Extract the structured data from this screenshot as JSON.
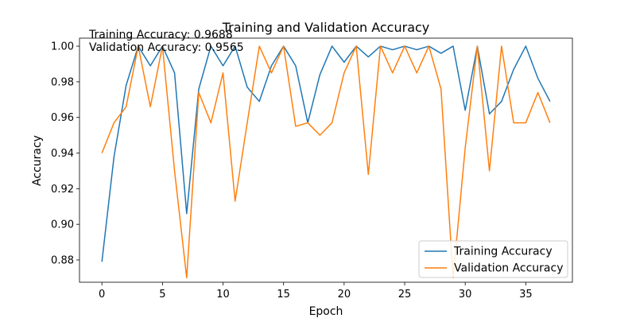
{
  "chart_data": {
    "type": "line",
    "title": "Training and Validation Accuracy",
    "xlabel": "Epoch",
    "ylabel": "Accuracy",
    "xlim": [
      -1.85,
      38.85
    ],
    "ylim": [
      0.8675,
      1.0045
    ],
    "xticks": [
      0,
      5,
      10,
      15,
      20,
      25,
      30,
      35
    ],
    "yticks": [
      0.88,
      0.9,
      0.92,
      0.94,
      0.96,
      0.98,
      1.0
    ],
    "ytick_labels": [
      "0.88",
      "0.90",
      "0.92",
      "0.94",
      "0.96",
      "0.98",
      "1.00"
    ],
    "grid": false,
    "legend_position": "lower-right",
    "annotations": [
      "Training Accuracy: 0.9688",
      "Validation Accuracy: 0.9565"
    ],
    "x": [
      0,
      1,
      2,
      3,
      4,
      5,
      6,
      7,
      8,
      9,
      10,
      11,
      12,
      13,
      14,
      15,
      16,
      17,
      18,
      19,
      20,
      21,
      22,
      23,
      24,
      25,
      26,
      27,
      28,
      29,
      30,
      31,
      32,
      33,
      34,
      35,
      36,
      37
    ],
    "series": [
      {
        "name": "Training Accuracy",
        "color": "#1f77b4",
        "values": [
          0.879,
          0.938,
          0.978,
          1.0,
          0.989,
          1.0,
          0.985,
          0.906,
          0.976,
          1.0,
          0.989,
          1.0,
          0.977,
          0.969,
          0.989,
          1.0,
          0.989,
          0.957,
          0.984,
          1.0,
          0.991,
          1.0,
          0.994,
          1.0,
          0.998,
          1.0,
          0.998,
          1.0,
          0.996,
          1.0,
          0.964,
          1.0,
          0.962,
          0.969,
          0.987,
          1.0,
          0.982,
          0.969
        ]
      },
      {
        "name": "Validation Accuracy",
        "color": "#ff7f0e",
        "values": [
          0.94,
          0.957,
          0.966,
          1.0,
          0.966,
          1.0,
          0.93,
          0.87,
          0.974,
          0.957,
          0.985,
          0.913,
          0.957,
          1.0,
          0.985,
          1.0,
          0.955,
          0.957,
          0.95,
          0.957,
          0.985,
          1.0,
          0.928,
          1.0,
          0.985,
          1.0,
          0.985,
          1.0,
          0.976,
          0.87,
          0.943,
          1.0,
          0.93,
          1.0,
          0.957,
          0.957,
          0.974,
          0.957
        ]
      }
    ]
  }
}
